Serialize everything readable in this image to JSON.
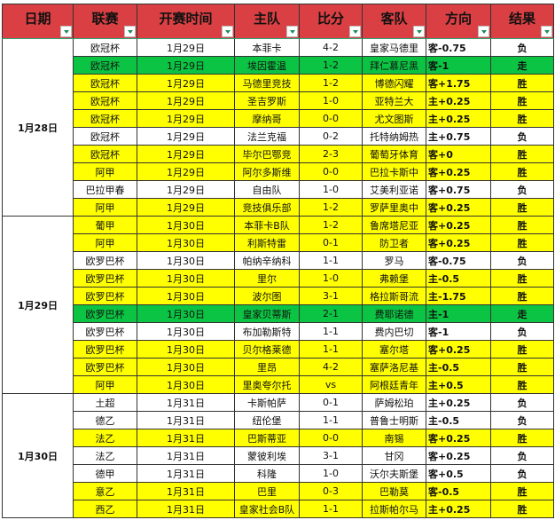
{
  "headers": [
    "日期",
    "联赛",
    "开赛时间",
    "主队",
    "比分",
    "客队",
    "方向",
    "结果"
  ],
  "colors": {
    "header": "#da4043",
    "win_row": "#ffff00",
    "push_row": "#0cc443",
    "win_text": "#ff0000",
    "push_text": "#0000ff"
  },
  "groups": [
    {
      "date": "1月28日",
      "rows": [
        {
          "league": "欧冠杯",
          "time": "1月29日",
          "home": "本菲卡",
          "score": "4-2",
          "away": "皇家马德里",
          "dir": "客-0.75",
          "result": "负",
          "row": "white"
        },
        {
          "league": "欧冠杯",
          "time": "1月29日",
          "home": "埃因霍温",
          "score": "1-2",
          "away": "拜仁慕尼黑",
          "dir": "客-1",
          "result": "走",
          "row": "green"
        },
        {
          "league": "欧冠杯",
          "time": "1月29日",
          "home": "马德里竞技",
          "score": "1-2",
          "away": "博德闪耀",
          "dir": "客+1.75",
          "result": "胜",
          "row": "yellow"
        },
        {
          "league": "欧冠杯",
          "time": "1月29日",
          "home": "圣吉罗斯",
          "score": "1-0",
          "away": "亚特兰大",
          "dir": "主+0.25",
          "result": "胜",
          "row": "yellow"
        },
        {
          "league": "欧冠杯",
          "time": "1月29日",
          "home": "摩纳哥",
          "score": "0-0",
          "away": "尤文图斯",
          "dir": "主+0.25",
          "result": "胜",
          "row": "yellow"
        },
        {
          "league": "欧冠杯",
          "time": "1月29日",
          "home": "法兰克福",
          "score": "0-2",
          "away": "托特纳姆热",
          "dir": "主+0.75",
          "result": "负",
          "row": "white"
        },
        {
          "league": "欧冠杯",
          "time": "1月29日",
          "home": "毕尔巴鄂竞",
          "score": "2-3",
          "away": "葡萄牙体育",
          "dir": "客+0",
          "result": "胜",
          "row": "yellow"
        },
        {
          "league": "阿甲",
          "time": "1月29日",
          "home": "阿尔多斯维",
          "score": "0-0",
          "away": "巴拉卡斯中",
          "dir": "客+0.25",
          "result": "胜",
          "row": "yellow"
        },
        {
          "league": "巴拉甲春",
          "time": "1月29日",
          "home": "自由队",
          "score": "1-0",
          "away": "艾美利亚诺",
          "dir": "客+0.75",
          "result": "负",
          "row": "white"
        },
        {
          "league": "阿甲",
          "time": "1月29日",
          "home": "竞技俱乐部",
          "score": "1-2",
          "away": "罗萨里奥中",
          "dir": "客+0.25",
          "result": "胜",
          "row": "yellow"
        }
      ]
    },
    {
      "date": "1月29日",
      "rows": [
        {
          "league": "葡甲",
          "time": "1月30日",
          "home": "本菲卡B队",
          "score": "1-2",
          "away": "鲁席塔尼亚",
          "dir": "客+0.25",
          "result": "胜",
          "row": "yellow"
        },
        {
          "league": "阿甲",
          "time": "1月30日",
          "home": "利斯特雷",
          "score": "0-1",
          "away": "防卫者",
          "dir": "客+0.25",
          "result": "胜",
          "row": "yellow"
        },
        {
          "league": "欧罗巴杯",
          "time": "1月30日",
          "home": "帕纳辛纳科",
          "score": "1-1",
          "away": "罗马",
          "dir": "客-0.75",
          "result": "负",
          "row": "white"
        },
        {
          "league": "欧罗巴杯",
          "time": "1月30日",
          "home": "里尔",
          "score": "1-0",
          "away": "弗赖堡",
          "dir": "主-0.5",
          "result": "胜",
          "row": "yellow"
        },
        {
          "league": "欧罗巴杯",
          "time": "1月30日",
          "home": "波尔图",
          "score": "3-1",
          "away": "格拉斯哥流",
          "dir": "主-1.75",
          "result": "胜",
          "row": "yellow"
        },
        {
          "league": "欧罗巴杯",
          "time": "1月30日",
          "home": "皇家贝蒂斯",
          "score": "2-1",
          "away": "费耶诺德",
          "dir": "主-1",
          "result": "走",
          "row": "green"
        },
        {
          "league": "欧罗巴杯",
          "time": "1月30日",
          "home": "布加勒斯特",
          "score": "1-1",
          "away": "费内巴切",
          "dir": "客-1",
          "result": "负",
          "row": "white"
        },
        {
          "league": "欧罗巴杯",
          "time": "1月30日",
          "home": "贝尔格莱德",
          "score": "1-1",
          "away": "塞尔塔",
          "dir": "客+0.25",
          "result": "胜",
          "row": "yellow"
        },
        {
          "league": "欧罗巴杯",
          "time": "1月30日",
          "home": "里昂",
          "score": "4-2",
          "away": "塞萨洛尼基",
          "dir": "主-0.5",
          "result": "胜",
          "row": "yellow"
        },
        {
          "league": "阿甲",
          "time": "1月30日",
          "home": "里奥夸尔托",
          "score": "vs",
          "away": "阿根廷青年",
          "dir": "主+0.5",
          "result": "胜",
          "row": "yellow"
        }
      ]
    },
    {
      "date": "1月30日",
      "rows": [
        {
          "league": "土超",
          "time": "1月31日",
          "home": "卡斯帕萨",
          "score": "0-1",
          "away": "萨姆松珀",
          "dir": "主+0.25",
          "result": "负",
          "row": "white"
        },
        {
          "league": "德乙",
          "time": "1月31日",
          "home": "纽伦堡",
          "score": "1-1",
          "away": "普鲁士明斯",
          "dir": "主-0.5",
          "result": "负",
          "row": "white"
        },
        {
          "league": "法乙",
          "time": "1月31日",
          "home": "巴斯蒂亚",
          "score": "0-0",
          "away": "南锡",
          "dir": "客+0.25",
          "result": "胜",
          "row": "yellow"
        },
        {
          "league": "法乙",
          "time": "1月31日",
          "home": "蒙彼利埃",
          "score": "3-1",
          "away": "甘冈",
          "dir": "客+0.25",
          "result": "负",
          "row": "white"
        },
        {
          "league": "德甲",
          "time": "1月31日",
          "home": "科隆",
          "score": "1-0",
          "away": "沃尔夫斯堡",
          "dir": "客+0.5",
          "result": "负",
          "row": "white"
        },
        {
          "league": "意乙",
          "time": "1月31日",
          "home": "巴里",
          "score": "0-3",
          "away": "巴勒莫",
          "dir": "客-0.5",
          "result": "胜",
          "row": "yellow"
        },
        {
          "league": "西乙",
          "time": "1月31日",
          "home": "皇家社会B队",
          "score": "1-1",
          "away": "拉斯帕尔马",
          "dir": "主+0.25",
          "result": "胜",
          "row": "yellow"
        }
      ]
    }
  ]
}
